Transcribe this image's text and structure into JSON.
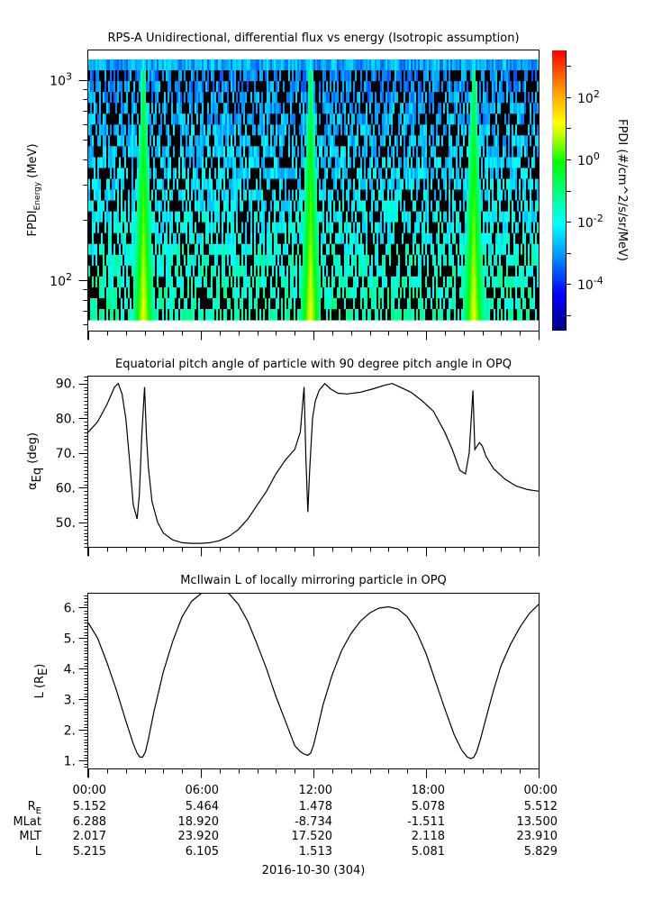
{
  "chart_data": [
    {
      "type": "heatmap",
      "title": "RPS-A Unidirectional, differential flux vs energy (Isotropic assumption)",
      "ylabel_main": "FPDI",
      "ylabel_sub": "Energy",
      "ylabel_unit": " (MeV)",
      "yscale": "log",
      "ylim": [
        56,
        1400
      ],
      "yticks": [
        {
          "value": 100,
          "base": "10",
          "exp": "2"
        },
        {
          "value": 1000,
          "base": "10",
          "exp": "3"
        }
      ],
      "colorbar": {
        "label": "FPDI (#/cm^2/s/sr/MeV)",
        "scale": "log",
        "range_log10": [
          -5.5,
          3.5
        ],
        "ticks": [
          {
            "log10": 2,
            "base": "10",
            "exp": "2"
          },
          {
            "log10": 0,
            "base": "10",
            "exp": "0"
          },
          {
            "log10": -2,
            "base": "10",
            "exp": "-2"
          },
          {
            "log10": -4,
            "base": "10",
            "exp": "-4"
          }
        ]
      },
      "xlim_hours": [
        0,
        24
      ],
      "belt_crossings_hours": [
        2.9,
        11.8,
        20.5
      ],
      "energy_channels": 24
    },
    {
      "type": "line",
      "title": "Equatorial pitch angle of particle with 90 degree pitch angle in OPQ",
      "ylabel_main": "α",
      "ylabel_sub": "Eq",
      "ylabel_unit": " (deg)",
      "ylim": [
        43,
        92
      ],
      "yticks": [
        "50.",
        "60.",
        "70.",
        "80.",
        "90."
      ],
      "ytick_values": [
        50,
        60,
        70,
        80,
        90
      ],
      "xlim_hours": [
        0,
        24
      ],
      "series": [
        {
          "name": "alpha_eq",
          "x": [
            0,
            0.5,
            1.0,
            1.4,
            1.6,
            1.8,
            2.0,
            2.2,
            2.4,
            2.6,
            2.72,
            2.85,
            3.0,
            3.1,
            3.2,
            3.4,
            3.7,
            4.0,
            4.5,
            5.0,
            5.5,
            6.0,
            6.5,
            7.0,
            7.5,
            8.0,
            8.5,
            9.0,
            9.5,
            10.0,
            10.5,
            11.0,
            11.3,
            11.5,
            11.6,
            11.7,
            11.8,
            11.95,
            12.1,
            12.3,
            12.6,
            12.9,
            13.3,
            13.8,
            14.5,
            15.2,
            15.8,
            16.2,
            16.6,
            17.2,
            17.8,
            18.4,
            19.0,
            19.4,
            19.8,
            20.1,
            20.3,
            20.5,
            20.6,
            20.72,
            20.85,
            21.0,
            21.2,
            21.6,
            22.2,
            22.8,
            23.4,
            24.0
          ],
          "y": [
            76,
            79,
            84,
            89,
            90,
            87,
            80,
            68,
            55,
            51,
            58,
            75,
            89,
            75,
            66,
            56,
            50,
            47,
            45,
            44.2,
            44,
            44,
            44.2,
            44.8,
            46,
            48,
            51,
            55,
            59,
            64,
            68,
            71,
            76,
            89,
            68,
            53,
            65,
            80,
            85,
            88,
            90,
            88.5,
            87.2,
            87,
            87.5,
            88.5,
            89.5,
            90,
            89,
            87.5,
            85,
            82,
            76,
            71,
            65,
            64,
            70,
            88,
            71,
            72,
            73,
            72,
            69,
            65.5,
            62.5,
            60.5,
            59.5,
            59
          ]
        }
      ]
    },
    {
      "type": "line",
      "title": "McIlwain L of locally mirroring particle in OPQ",
      "ylabel_main": "L (R",
      "ylabel_sub": "E",
      "ylabel_unit": ")",
      "ylim": [
        0.75,
        6.45
      ],
      "yticks": [
        "1.",
        "2.",
        "3.",
        "4.",
        "5.",
        "6."
      ],
      "ytick_values": [
        1,
        2,
        3,
        4,
        5,
        6
      ],
      "xlim_hours": [
        0,
        24
      ],
      "series": [
        {
          "name": "L",
          "x": [
            0,
            0.5,
            1.0,
            1.5,
            2.0,
            2.4,
            2.6,
            2.75,
            2.9,
            3.05,
            3.2,
            3.5,
            4.0,
            4.5,
            5.0,
            5.5,
            6.0,
            6.5,
            7.0,
            7.5,
            8.0,
            8.5,
            9.0,
            9.5,
            10.0,
            10.5,
            11.0,
            11.3,
            11.5,
            11.7,
            11.85,
            12.0,
            12.2,
            12.5,
            13.0,
            13.5,
            14.0,
            14.5,
            15.0,
            15.5,
            16.0,
            16.5,
            17.0,
            17.5,
            18.0,
            18.5,
            19.0,
            19.5,
            19.9,
            20.2,
            20.4,
            20.55,
            20.7,
            20.9,
            21.2,
            21.6,
            22.0,
            22.5,
            23.0,
            23.5,
            24.0
          ],
          "y": [
            5.5,
            5.0,
            4.2,
            3.3,
            2.3,
            1.55,
            1.25,
            1.12,
            1.12,
            1.3,
            1.7,
            2.6,
            3.9,
            4.9,
            5.7,
            6.2,
            6.45,
            6.55,
            6.55,
            6.45,
            6.1,
            5.55,
            4.8,
            4.0,
            3.1,
            2.3,
            1.5,
            1.3,
            1.22,
            1.18,
            1.25,
            1.5,
            2.0,
            2.8,
            3.8,
            4.6,
            5.15,
            5.55,
            5.82,
            5.98,
            6.02,
            5.95,
            5.7,
            5.2,
            4.5,
            3.6,
            2.7,
            1.85,
            1.35,
            1.12,
            1.07,
            1.12,
            1.3,
            1.7,
            2.4,
            3.3,
            4.1,
            4.8,
            5.35,
            5.8,
            6.1
          ]
        }
      ]
    }
  ],
  "ephemeris": {
    "time_labels": [
      "00:00",
      "06:00",
      "12:00",
      "18:00",
      "00:00"
    ],
    "rows": [
      {
        "label_main": "R",
        "label_sub": "E",
        "values": [
          "5.152",
          "5.464",
          "1.478",
          "5.078",
          "5.512"
        ]
      },
      {
        "label_main": "MLat",
        "label_sub": "",
        "values": [
          "6.288",
          "18.920",
          "-8.734",
          "-1.511",
          "13.500"
        ]
      },
      {
        "label_main": "MLT",
        "label_sub": "",
        "values": [
          "2.017",
          "23.920",
          "17.520",
          "2.118",
          "23.910"
        ]
      },
      {
        "label_main": "L",
        "label_sub": "",
        "values": [
          "5.215",
          "6.105",
          "1.513",
          "5.081",
          "5.829"
        ]
      }
    ],
    "date_label": "2016-10-30 (304)"
  }
}
